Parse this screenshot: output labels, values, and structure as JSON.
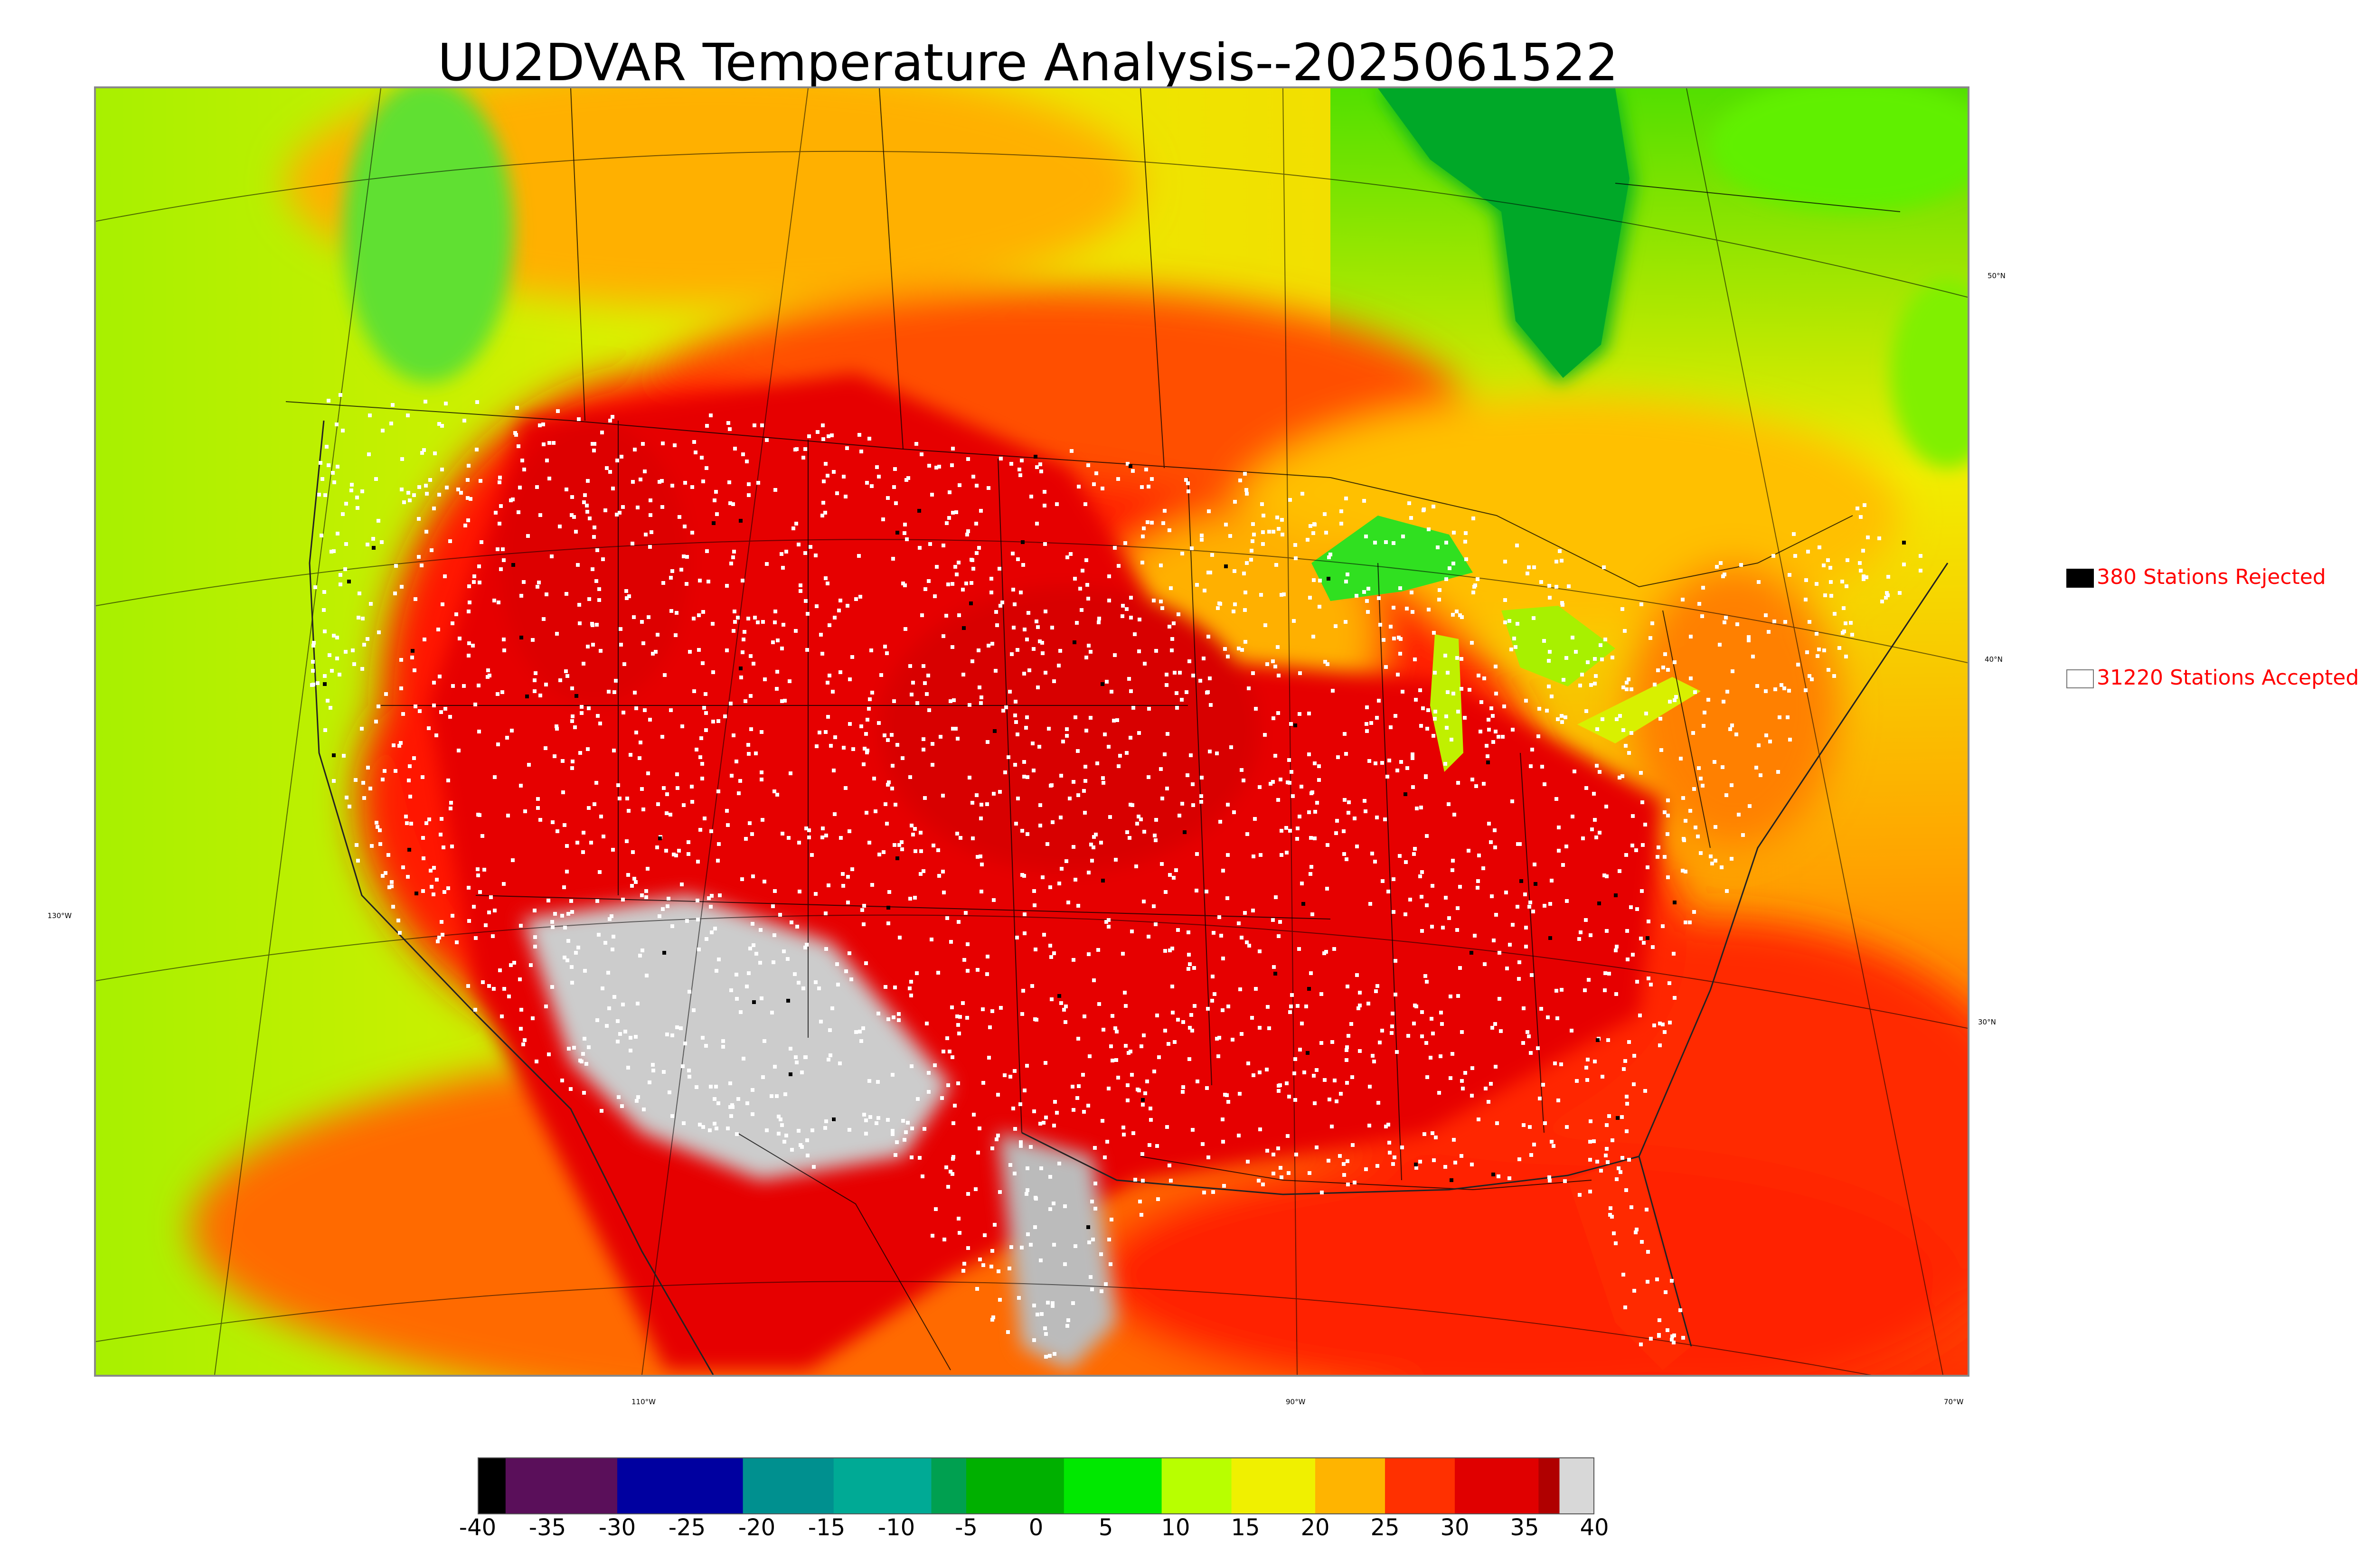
{
  "title": "UU2DVAR Temperature Analysis--2025061522",
  "legend": [
    {
      "label": "380 Stations Rejected",
      "swatch_color": "#000000"
    },
    {
      "label": "31220 Stations Accepted",
      "swatch_color": "#ffffff"
    }
  ],
  "graticule_labels": {
    "latitude": [
      "50°N",
      "40°N",
      "30°N"
    ],
    "longitude": [
      "130°W",
      "110°W",
      "90°W",
      "70°W"
    ]
  },
  "colorbar": {
    "tick_labels": [
      "-40",
      "-35",
      "-30",
      "-25",
      "-20",
      "-15",
      "-10",
      "-5",
      "0",
      "5",
      "10",
      "15",
      "20",
      "25",
      "30",
      "35",
      "40"
    ],
    "segments": [
      {
        "from": -40,
        "to": -38,
        "color": "#000000"
      },
      {
        "from": -38,
        "to": -30,
        "color": "#5a0f5a"
      },
      {
        "from": -30,
        "to": -21,
        "color": "#0000a0"
      },
      {
        "from": -21,
        "to": -14.5,
        "color": "#00908f"
      },
      {
        "from": -14.5,
        "to": -7.5,
        "color": "#00aa95"
      },
      {
        "from": -7.5,
        "to": -5,
        "color": "#00a050"
      },
      {
        "from": -5,
        "to": 2,
        "color": "#00b000"
      },
      {
        "from": 2,
        "to": 9,
        "color": "#00e800"
      },
      {
        "from": 9,
        "to": 14,
        "color": "#b8ff00"
      },
      {
        "from": 14,
        "to": 20,
        "color": "#f0f000"
      },
      {
        "from": 20,
        "to": 25,
        "color": "#ffb400"
      },
      {
        "from": 25,
        "to": 30,
        "color": "#ff3000"
      },
      {
        "from": 30,
        "to": 36,
        "color": "#e00000"
      },
      {
        "from": 36,
        "to": 37.5,
        "color": "#b00000"
      },
      {
        "from": 37.5,
        "to": 40,
        "color": "#d8d8d8"
      }
    ]
  },
  "colors": {
    "cold_canada": "#00b020",
    "cool_ocean": "#b8ff00",
    "mild": "#ffd000",
    "warm": "#ff8000",
    "hot": "#ff1000",
    "very_hot": "#dd0000",
    "extreme": "#cccccc",
    "stations_accepted": "#ffffff",
    "stations_rejected": "#000000"
  }
}
